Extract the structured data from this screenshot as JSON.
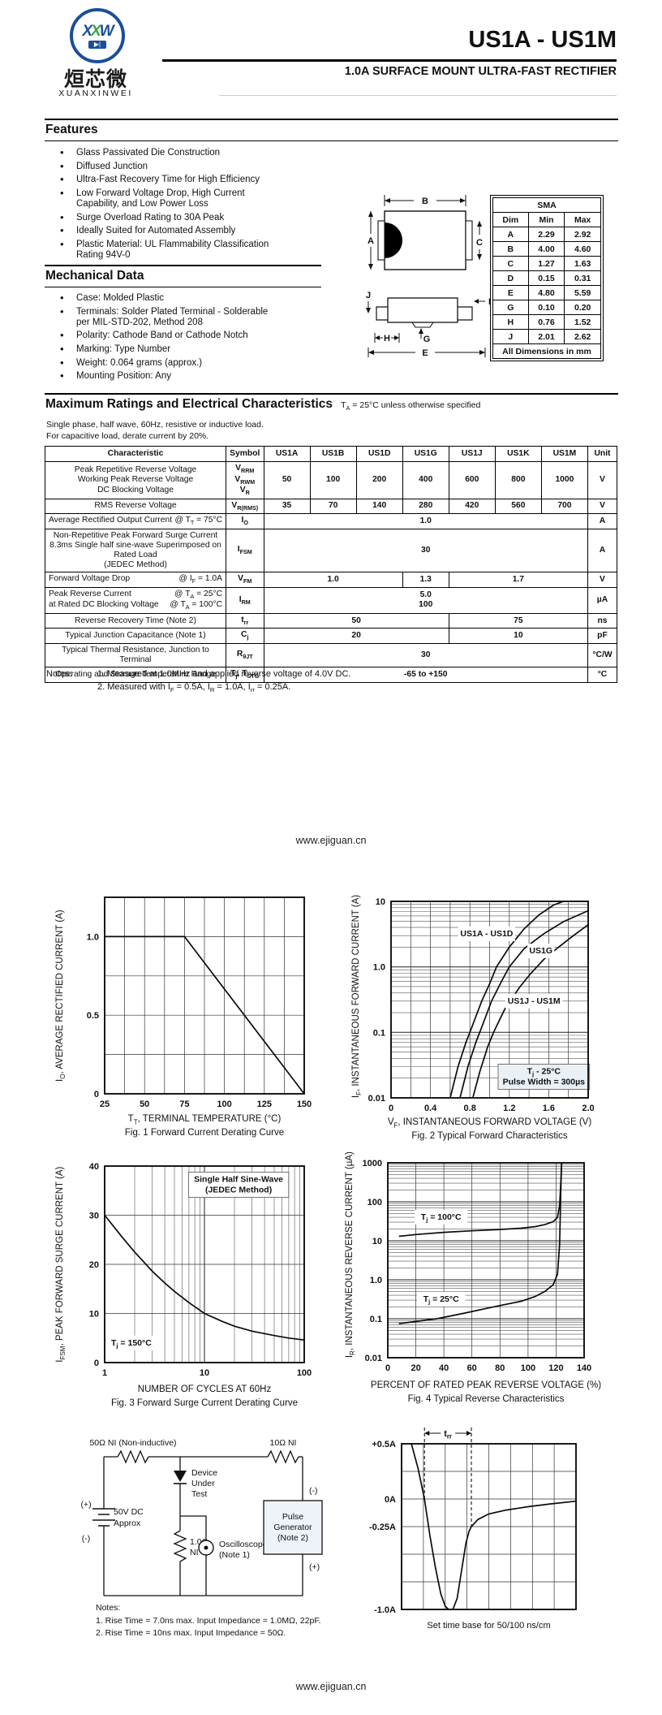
{
  "header": {
    "title": "US1A - US1M",
    "subtitle": "1.0A SURFACE MOUNT ULTRA-FAST RECTIFIER",
    "logo": {
      "monogram_1": "X",
      "monogram_2": "X",
      "monogram_3": "W",
      "diode_glyph": "▶|",
      "cn": "烜芯微",
      "latin": "XUANXINWEI"
    }
  },
  "features": {
    "heading": "Features",
    "items": [
      "Glass Passivated Die Construction",
      "Diffused Junction",
      "Ultra-Fast Recovery Time for High Efficiency",
      "Low Forward Voltage Drop, High Current Capability, and Low Power Loss",
      "Surge Overload Rating to 30A Peak",
      "Ideally Suited for Automated Assembly",
      "Plastic Material: UL Flammability Classification Rating 94V-0"
    ]
  },
  "mechanical": {
    "heading": "Mechanical Data",
    "items": [
      "Case: Molded Plastic",
      "Terminals: Solder Plated Terminal - Solderable per MIL-STD-202, Method 208",
      "Polarity: Cathode Band or Cathode Notch",
      "Marking: Type Number",
      "Weight: 0.064 grams (approx.)",
      "Mounting Position: Any"
    ]
  },
  "package": {
    "name": "SMA",
    "headers": [
      "Dim",
      "Min",
      "Max"
    ],
    "rows": [
      [
        "A",
        "2.29",
        "2.92"
      ],
      [
        "B",
        "4.00",
        "4.60"
      ],
      [
        "C",
        "1.27",
        "1.63"
      ],
      [
        "D",
        "0.15",
        "0.31"
      ],
      [
        "E",
        "4.80",
        "5.59"
      ],
      [
        "G",
        "0.10",
        "0.20"
      ],
      [
        "H",
        "0.76",
        "1.52"
      ],
      [
        "J",
        "2.01",
        "2.62"
      ]
    ],
    "footer": "All Dimensions in mm",
    "labels": {
      "A": "A",
      "B": "B",
      "C": "C",
      "D": "D",
      "E": "E",
      "G": "G",
      "H": "H",
      "J": "J"
    }
  },
  "ratings": {
    "heading": "Maximum Ratings and Electrical Characteristics",
    "heading_note": "T~A~ = 25°C unless otherwise specified",
    "intro1": "Single phase, half wave, 60Hz, resistive or inductive load.",
    "intro2": "For capacitive load, derate current by 20%.",
    "col_headers": [
      "Characteristic",
      "Symbol",
      "US1A",
      "US1B",
      "US1D",
      "US1G",
      "US1J",
      "US1K",
      "US1M",
      "Unit"
    ],
    "rows": {
      "r1": {
        "l1": "Peak Repetitive Reverse Voltage",
        "l2": "Working Peak Reverse Voltage",
        "l3": "DC Blocking Voltage",
        "s1": "V~RRM~",
        "s2": "V~RWM~",
        "s3": "V~R~",
        "v": [
          "50",
          "100",
          "200",
          "400",
          "600",
          "800",
          "1000"
        ],
        "unit": "V"
      },
      "r2": {
        "l1": "RMS Reverse Voltage",
        "sym": "V~R(RMS)~",
        "v": [
          "35",
          "70",
          "140",
          "280",
          "420",
          "560",
          "700"
        ],
        "unit": "V"
      },
      "r3": {
        "l1": "Average Rectified Output Current",
        "cond": "@ T~T~ = 75°C",
        "sym": "I~O~",
        "v": "1.0",
        "unit": "A"
      },
      "r4": {
        "l1": "Non-Repetitive Peak Forward Surge Current",
        "l2": "8.3ms Single half sine-wave Superimposed on Rated Load",
        "l3": "(JEDEC Method)",
        "sym": "I~FSM~",
        "v": "30",
        "unit": "A"
      },
      "r5": {
        "l1": "Forward Voltage Drop",
        "cond": "@ I~F~ = 1.0A",
        "sym": "V~FM~",
        "v1": "1.0",
        "v2": "1.3",
        "v3": "1.7",
        "unit": "V"
      },
      "r6": {
        "l1": "Peak Reverse Current",
        "cond1": "@ T~A~ =  25°C",
        "l2": "at Rated DC Blocking Voltage",
        "cond2": "@ T~A~ = 100°C",
        "sym": "I~RM~",
        "v1": "5.0",
        "v2": "100",
        "unit": "µA"
      },
      "r7": {
        "l1": "Reverse Recovery Time (Note 2)",
        "sym": "t~rr~",
        "v1": "50",
        "v2": "75",
        "unit": "ns"
      },
      "r8": {
        "l1": "Typical Junction Capacitance (Note 1)",
        "sym": "C~j~",
        "v1": "20",
        "v2": "10",
        "unit": "pF"
      },
      "r9": {
        "l1": "Typical Thermal Resistance, Junction to Terminal",
        "sym": "R~θJT~",
        "v": "30",
        "unit": "°C/W"
      },
      "r10": {
        "l1": "Operating and Storage Temperature Range",
        "sym": "T~j~, T~STG~",
        "v": "-65 to +150",
        "unit": "°C"
      }
    },
    "notes_label": "Notes:",
    "note1": "1.  Measured at 1.0MHz and applied reverse voltage of 4.0V DC.",
    "note2": "2.  Measured with I~F~ = 0.5A, I~R~ = 1.0A, I~rr~ = 0.25A."
  },
  "links": {
    "mid": "www.ejiguan.cn",
    "bottom": "www.ejiguan.cn"
  },
  "chart_data": [
    {
      "id": "fig1",
      "type": "line",
      "title": "Fig. 1  Forward Current Derating Curve",
      "xlabel": "T~T~, TERMINAL TEMPERATURE (°C)",
      "ylabel": "I~O~, AVERAGE RECTIFIED CURRENT (A)",
      "xscale": "linear",
      "xlim": [
        25,
        150
      ],
      "xstep": 12.5,
      "xticks": [
        [
          25,
          "25"
        ],
        [
          50,
          "50"
        ],
        [
          75,
          "75"
        ],
        [
          100,
          "100"
        ],
        [
          125,
          "125"
        ],
        [
          150,
          "150"
        ]
      ],
      "yscale": "linear",
      "ylim": [
        0,
        1.25
      ],
      "ystep": 0.25,
      "yticks": [
        [
          0,
          "0"
        ],
        [
          0.5,
          "0.5"
        ],
        [
          1.0,
          "1.0"
        ]
      ],
      "series": [
        {
          "name": "derating",
          "points": [
            [
              25,
              1.0
            ],
            [
              75,
              1.0
            ],
            [
              150,
              0
            ]
          ]
        }
      ]
    },
    {
      "id": "fig2",
      "type": "line",
      "title": "Fig. 2  Typical Forward Characteristics",
      "xlabel": "V~F~, INSTANTANEOUS FORWARD VOLTAGE (V)",
      "ylabel": "I~F~, INSTANTANEOUS FORWARD CURRENT (A)",
      "xscale": "linear",
      "xlim": [
        0,
        2.0
      ],
      "xstep": 0.2,
      "xticks": [
        [
          0,
          "0"
        ],
        [
          0.4,
          "0.4"
        ],
        [
          0.8,
          "0.8"
        ],
        [
          1.2,
          "1.2"
        ],
        [
          1.6,
          "1.6"
        ],
        [
          2.0,
          "2.0"
        ]
      ],
      "yscale": "log",
      "ylim": [
        0.01,
        10
      ],
      "yticks": [
        [
          0.01,
          "0.01"
        ],
        [
          0.1,
          "0.1"
        ],
        [
          1,
          "1.0"
        ],
        [
          10,
          "10"
        ]
      ],
      "series": [
        {
          "name": "US1A - US1D",
          "points": [
            [
              0.6,
              0.01
            ],
            [
              0.68,
              0.03
            ],
            [
              0.76,
              0.07
            ],
            [
              0.82,
              0.12
            ],
            [
              0.92,
              0.3
            ],
            [
              1.0,
              0.55
            ],
            [
              1.07,
              1.0
            ],
            [
              1.2,
              2.0
            ],
            [
              1.35,
              3.8
            ],
            [
              1.5,
              6.2
            ],
            [
              1.65,
              8.8
            ],
            [
              1.75,
              10
            ]
          ]
        },
        {
          "name": "US1G",
          "points": [
            [
              0.7,
              0.01
            ],
            [
              0.78,
              0.03
            ],
            [
              0.86,
              0.07
            ],
            [
              0.92,
              0.12
            ],
            [
              1.02,
              0.3
            ],
            [
              1.12,
              0.6
            ],
            [
              1.2,
              1.0
            ],
            [
              1.35,
              1.9
            ],
            [
              1.55,
              3.2
            ],
            [
              1.75,
              4.9
            ],
            [
              2.0,
              7.2
            ]
          ]
        },
        {
          "name": "US1J - US1M",
          "points": [
            [
              0.83,
              0.01
            ],
            [
              0.9,
              0.025
            ],
            [
              0.98,
              0.06
            ],
            [
              1.04,
              0.1
            ],
            [
              1.15,
              0.22
            ],
            [
              1.3,
              0.48
            ],
            [
              1.42,
              0.8
            ],
            [
              1.55,
              1.3
            ],
            [
              1.7,
              2.0
            ],
            [
              1.85,
              3.0
            ],
            [
              2.0,
              4.4
            ]
          ]
        }
      ],
      "annotations": [
        {
          "text": "US1A - US1D",
          "x": 0.97,
          "y": 3.2,
          "bg": "#fff"
        },
        {
          "text": "US1G",
          "x": 1.52,
          "y": 1.75,
          "bg": "#fff"
        },
        {
          "text": "US1J - US1M",
          "x": 1.45,
          "y": 0.3,
          "bg": "#fff"
        },
        {
          "text": "T~j~ - 25°C\nPulse Width = 300µs",
          "x": 1.55,
          "y": 0.021,
          "bg": "#e9f0f6",
          "box": true
        }
      ]
    },
    {
      "id": "fig3",
      "type": "line",
      "title": "Fig. 3  Forward Surge Current Derating Curve",
      "xlabel": "NUMBER OF CYCLES AT 60Hz",
      "ylabel": "I~FSM~, PEAK FORWARD SURGE CURRENT (A)",
      "xscale": "log",
      "xlim": [
        1,
        100
      ],
      "xticks": [
        [
          1,
          "1"
        ],
        [
          10,
          "10"
        ],
        [
          100,
          "100"
        ]
      ],
      "yscale": "linear",
      "ylim": [
        0,
        40
      ],
      "ystep": 10,
      "yticks": [
        [
          0,
          "0"
        ],
        [
          10,
          "10"
        ],
        [
          20,
          "20"
        ],
        [
          30,
          "30"
        ],
        [
          40,
          "40"
        ]
      ],
      "series": [
        {
          "name": "surge",
          "points": [
            [
              1,
              30
            ],
            [
              1.5,
              25.5
            ],
            [
              2,
              22.5
            ],
            [
              3,
              18.6
            ],
            [
              4,
              16.2
            ],
            [
              5,
              14.5
            ],
            [
              7,
              12.2
            ],
            [
              10,
              10
            ],
            [
              15,
              8.4
            ],
            [
              20,
              7.4
            ],
            [
              30,
              6.4
            ],
            [
              50,
              5.5
            ],
            [
              70,
              5.0
            ],
            [
              100,
              4.6
            ]
          ]
        }
      ],
      "annotations": [
        {
          "text": "Single Half Sine-Wave\n(JEDEC Method)",
          "x": 22,
          "y": 36.2,
          "bg": "#fff",
          "box": true
        },
        {
          "text": "T~j~ = 150°C",
          "x": 1.85,
          "y": 4,
          "bg": "#fff"
        }
      ]
    },
    {
      "id": "fig4",
      "type": "line",
      "title": "Fig. 4  Typical Reverse Characteristics",
      "xlabel": "PERCENT OF RATED PEAK REVERSE VOLTAGE (%)",
      "ylabel": "I~R~, INSTANTANEOUS REVERSE CURRENT (µA)",
      "xscale": "linear",
      "xlim": [
        0,
        140
      ],
      "xstep": 20,
      "xticks": [
        [
          0,
          "0"
        ],
        [
          20,
          "20"
        ],
        [
          40,
          "40"
        ],
        [
          60,
          "60"
        ],
        [
          80,
          "80"
        ],
        [
          100,
          "100"
        ],
        [
          120,
          "120"
        ],
        [
          140,
          "140"
        ]
      ],
      "yscale": "log",
      "ylim": [
        0.01,
        1000
      ],
      "yticks": [
        [
          0.01,
          "0.01"
        ],
        [
          0.1,
          "0.1"
        ],
        [
          1,
          "1.0"
        ],
        [
          10,
          "10"
        ],
        [
          100,
          "100"
        ],
        [
          1000,
          "1000"
        ]
      ],
      "series": [
        {
          "name": "Tj = 100C",
          "points": [
            [
              8,
              13
            ],
            [
              20,
              14.5
            ],
            [
              40,
              16.5
            ],
            [
              60,
              18
            ],
            [
              80,
              19.5
            ],
            [
              95,
              21
            ],
            [
              105,
              23
            ],
            [
              112,
              26
            ],
            [
              118,
              31
            ],
            [
              121,
              40
            ],
            [
              122.5,
              80
            ],
            [
              123.5,
              400
            ],
            [
              124,
              1000
            ]
          ]
        },
        {
          "name": "Tj = 25C",
          "points": [
            [
              8,
              0.075
            ],
            [
              20,
              0.085
            ],
            [
              35,
              0.1
            ],
            [
              55,
              0.14
            ],
            [
              75,
              0.2
            ],
            [
              95,
              0.28
            ],
            [
              105,
              0.37
            ],
            [
              112,
              0.5
            ],
            [
              118,
              0.75
            ],
            [
              121,
              1.4
            ],
            [
              122.5,
              8
            ],
            [
              123.5,
              300
            ],
            [
              124,
              1000
            ]
          ]
        }
      ],
      "annotations": [
        {
          "text": "T~j~ = 100°C",
          "x": 38,
          "y": 40,
          "bg": "#fff"
        },
        {
          "text": "T~j~ = 25°C",
          "x": 38,
          "y": 0.32,
          "bg": "#fff"
        }
      ]
    },
    {
      "id": "wave",
      "type": "line",
      "title": "Set time base for 50/100 ns/cm",
      "xlabel": "",
      "ylabel": "",
      "xscale": "linear",
      "xlim": [
        0,
        8
      ],
      "xstep": 1,
      "yscale": "linear",
      "ylim": [
        -1.0,
        0.5
      ],
      "ystep": 0.25,
      "yticks": [
        [
          0.5,
          "+0.5A"
        ],
        [
          0,
          "0A"
        ],
        [
          -0.25,
          "-0.25A"
        ],
        [
          -1,
          "-1.0A"
        ]
      ],
      "series": [
        {
          "name": "recovery waveform",
          "points": [
            [
              0.45,
              0.5
            ],
            [
              0.75,
              0.28
            ],
            [
              1.05,
              0
            ],
            [
              1.3,
              -0.33
            ],
            [
              1.55,
              -0.62
            ],
            [
              1.8,
              -0.86
            ],
            [
              2.0,
              -0.97
            ],
            [
              2.15,
              -1.0
            ],
            [
              2.35,
              -1.0
            ],
            [
              2.55,
              -0.9
            ],
            [
              2.75,
              -0.65
            ],
            [
              2.95,
              -0.4
            ],
            [
              3.1,
              -0.29
            ],
            [
              3.2,
              -0.25
            ],
            [
              3.5,
              -0.185
            ],
            [
              4.0,
              -0.135
            ],
            [
              4.8,
              -0.1
            ],
            [
              5.8,
              -0.07
            ],
            [
              6.8,
              -0.045
            ],
            [
              8,
              -0.02
            ]
          ]
        }
      ],
      "dashed": [
        {
          "x": 1.05,
          "to_y": 0
        },
        {
          "x": 3.2,
          "to_y": -0.25
        }
      ],
      "marker": {
        "x1": 1.05,
        "x2": 3.2,
        "label": "t~rr~"
      }
    }
  ],
  "circuit": {
    "r1_label": "50Ω NI (Non-inductive)",
    "r2_label": "10Ω NI",
    "src_plus": "(+)",
    "src_minus": "(-)",
    "source_l1": "50V DC",
    "source_l2": "Approx",
    "dut_l1": "Device",
    "dut_l2": "Under",
    "dut_l3": "Test",
    "r3_l1": "1.0Ω",
    "r3_l2": "NI",
    "scope_l1": "Oscilloscope",
    "scope_l2": "(Note 1)",
    "pg_minus": "(-)",
    "pg_plus": "(+)",
    "pg_l1": "Pulse",
    "pg_l2": "Generator",
    "pg_l3": "(Note 2)",
    "notes_label": "Notes:",
    "note1": "1. Rise Time = 7.0ns max. Input Impedance = 1.0MΩ, 22pF.",
    "note2": "2. Rise Time = 10ns max. Input Impedance = 50Ω."
  }
}
